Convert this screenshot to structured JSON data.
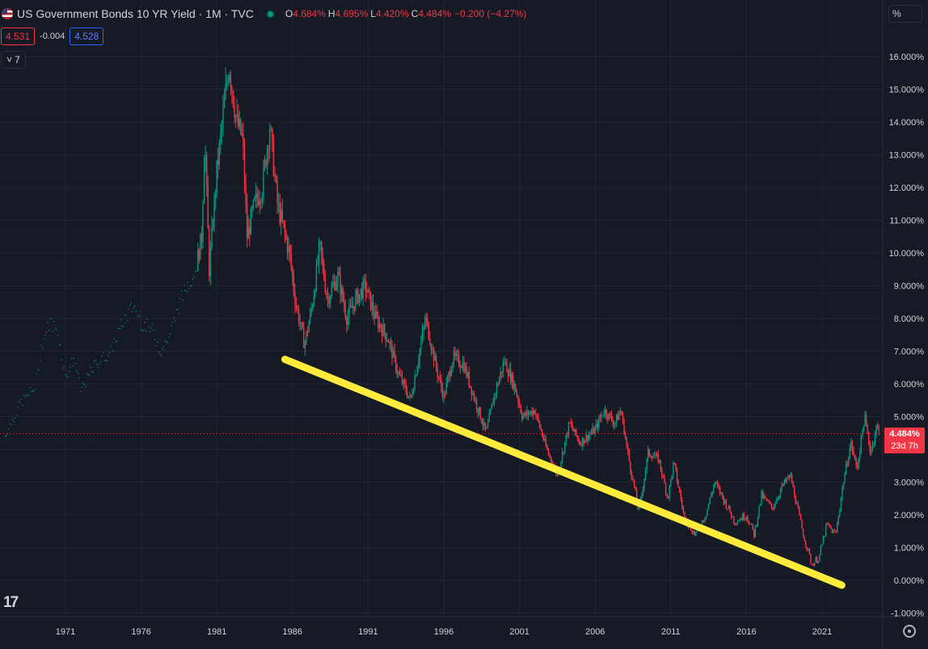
{
  "header": {
    "symbol_title": "US Government Bonds 10 YR Yield · 1M · TVC",
    "ohlc": {
      "o_label": "O",
      "o_value": "4.684%",
      "h_label": "H",
      "h_value": "4.695%",
      "l_label": "L",
      "l_value": "4.420%",
      "c_label": "C",
      "c_value": "4.484%",
      "change": "−0.200 (−4.27%)"
    },
    "sell_price": "4.531",
    "spread": "-0.004",
    "buy_price": "4.528",
    "indicators_count": "7",
    "indicators_chevron": "˅"
  },
  "price_scale": {
    "unit_label": "%",
    "last_price_label": "4.484%",
    "countdown": "23d 7h"
  },
  "branding": {
    "logo_text": "17"
  },
  "icons": {
    "flag": "us-flag-icon",
    "live": "market-status-icon",
    "settings": "gear-icon",
    "logo": "tradingview-logo-icon"
  },
  "colors": {
    "up": "#089981",
    "down": "#f23645",
    "trendline": "#ffeb3b",
    "background": "#161a25",
    "grid": "#232734"
  },
  "chart_data": {
    "type": "candlestick",
    "title": "US Government Bonds 10 YR Yield",
    "interval": "1M",
    "x_ticks": [
      "1971",
      "1976",
      "1981",
      "1986",
      "1991",
      "1996",
      "2001",
      "2006",
      "2011",
      "2016",
      "2021"
    ],
    "y_ticks": [
      "16.000%",
      "15.000%",
      "14.000%",
      "13.000%",
      "12.000%",
      "11.000%",
      "10.000%",
      "9.000%",
      "8.000%",
      "7.000%",
      "6.000%",
      "5.000%",
      "4.000%",
      "3.000%",
      "2.000%",
      "1.000%",
      "0.000%",
      "-1.000%"
    ],
    "ylim": [
      -1.3,
      17
    ],
    "last_value": 4.484,
    "series": [
      {
        "name": "US10Y monthly (approx.)",
        "points": [
          [
            1967.0,
            4.4
          ],
          [
            1968.0,
            5.4
          ],
          [
            1969.0,
            5.9
          ],
          [
            1969.5,
            7.3
          ],
          [
            1970.0,
            7.9
          ],
          [
            1970.5,
            7.6
          ],
          [
            1971.0,
            6.2
          ],
          [
            1971.6,
            6.8
          ],
          [
            1972.0,
            5.8
          ],
          [
            1973.0,
            6.6
          ],
          [
            1974.0,
            7.0
          ],
          [
            1974.8,
            7.9
          ],
          [
            1975.5,
            8.4
          ],
          [
            1976.0,
            7.9
          ],
          [
            1976.8,
            7.6
          ],
          [
            1977.3,
            7.0
          ],
          [
            1977.9,
            7.5
          ],
          [
            1978.5,
            8.4
          ],
          [
            1979.0,
            9.0
          ],
          [
            1979.6,
            9.5
          ],
          [
            1980.0,
            10.5
          ],
          [
            1980.2,
            13.6
          ],
          [
            1980.5,
            9.5
          ],
          [
            1981.0,
            12.5
          ],
          [
            1981.8,
            15.8
          ],
          [
            1982.3,
            14.0
          ],
          [
            1982.7,
            13.5
          ],
          [
            1983.0,
            10.5
          ],
          [
            1983.5,
            11.5
          ],
          [
            1984.0,
            12.0
          ],
          [
            1984.5,
            13.9
          ],
          [
            1985.0,
            11.5
          ],
          [
            1985.8,
            10.0
          ],
          [
            1986.2,
            8.5
          ],
          [
            1986.8,
            7.2
          ],
          [
            1987.3,
            8.4
          ],
          [
            1987.8,
            10.2
          ],
          [
            1988.3,
            8.6
          ],
          [
            1989.0,
            9.3
          ],
          [
            1989.6,
            8.0
          ],
          [
            1990.2,
            8.6
          ],
          [
            1990.8,
            9.0
          ],
          [
            1991.5,
            8.0
          ],
          [
            1992.3,
            7.4
          ],
          [
            1993.0,
            6.3
          ],
          [
            1993.8,
            5.5
          ],
          [
            1994.8,
            8.0
          ],
          [
            1995.5,
            6.5
          ],
          [
            1996.0,
            5.6
          ],
          [
            1996.6,
            6.8
          ],
          [
            1997.3,
            6.6
          ],
          [
            1998.0,
            5.6
          ],
          [
            1998.8,
            4.5
          ],
          [
            1999.3,
            5.6
          ],
          [
            2000.0,
            6.7
          ],
          [
            2000.7,
            5.9
          ],
          [
            2001.2,
            5.0
          ],
          [
            2002.0,
            5.2
          ],
          [
            2002.8,
            4.0
          ],
          [
            2003.5,
            3.2
          ],
          [
            2004.3,
            4.8
          ],
          [
            2005.0,
            4.2
          ],
          [
            2006.0,
            4.6
          ],
          [
            2006.6,
            5.2
          ],
          [
            2007.3,
            4.8
          ],
          [
            2007.7,
            5.2
          ],
          [
            2008.3,
            3.5
          ],
          [
            2008.9,
            2.1
          ],
          [
            2009.5,
            3.9
          ],
          [
            2010.2,
            3.7
          ],
          [
            2010.8,
            2.5
          ],
          [
            2011.2,
            3.6
          ],
          [
            2011.9,
            1.9
          ],
          [
            2012.6,
            1.4
          ],
          [
            2013.3,
            2.0
          ],
          [
            2013.9,
            3.0
          ],
          [
            2014.8,
            2.2
          ],
          [
            2015.2,
            1.8
          ],
          [
            2016.0,
            2.0
          ],
          [
            2016.5,
            1.4
          ],
          [
            2017.0,
            2.6
          ],
          [
            2017.7,
            2.2
          ],
          [
            2018.4,
            2.9
          ],
          [
            2018.9,
            3.2
          ],
          [
            2019.7,
            1.5
          ],
          [
            2020.3,
            0.5
          ],
          [
            2020.8,
            0.7
          ],
          [
            2021.3,
            1.7
          ],
          [
            2021.9,
            1.4
          ],
          [
            2022.4,
            3.0
          ],
          [
            2022.9,
            4.2
          ],
          [
            2023.3,
            3.4
          ],
          [
            2023.8,
            5.0
          ],
          [
            2024.2,
            3.9
          ],
          [
            2024.6,
            4.7
          ],
          [
            2024.8,
            4.484
          ]
        ]
      }
    ],
    "trendline": {
      "from": [
        1985.5,
        6.75
      ],
      "to": [
        2022.3,
        -0.15
      ]
    },
    "current_price_line": 4.484,
    "grid": true
  }
}
